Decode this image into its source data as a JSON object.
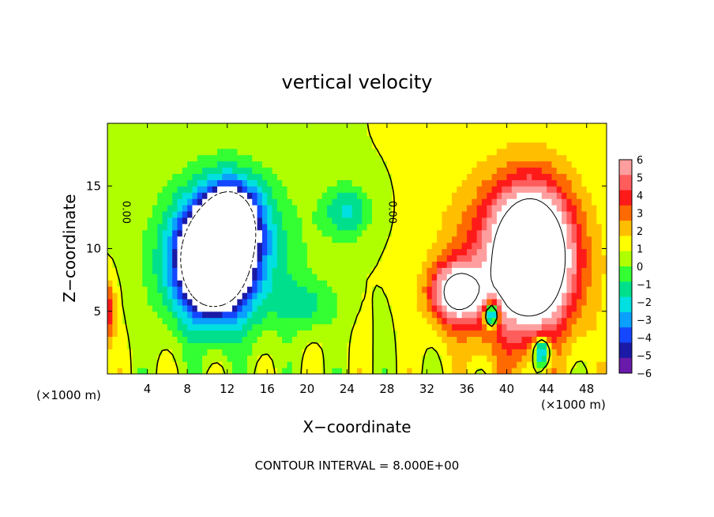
{
  "chart_data": {
    "type": "heatmap",
    "title": "vertical velocity",
    "xlabel": "X−coordinate",
    "ylabel": "Z−coordinate",
    "x_units": "(×1000 m)",
    "x_units_right": "(×1000 m)",
    "xlim": [
      0,
      50
    ],
    "ylim": [
      0,
      20
    ],
    "xticks": [
      4,
      8,
      12,
      16,
      20,
      24,
      28,
      32,
      36,
      40,
      44,
      48
    ],
    "yticks": [
      5,
      10,
      15
    ],
    "footer": "CONTOUR INTERVAL = 8.000E+00",
    "contour_labels": [
      {
        "text": "0.00",
        "x": 1.8,
        "z": 12.9
      },
      {
        "text": "0.00",
        "x": 28.5,
        "z": 12.9
      }
    ],
    "colorbar": {
      "levels": [
        6,
        5,
        4,
        3,
        2,
        1,
        0,
        -1,
        -2,
        -3,
        -4,
        -5,
        -6
      ],
      "tick_labels": [
        "6",
        "5",
        "4",
        "3",
        "2",
        "1",
        "0",
        "−1",
        "−2",
        "−3",
        "−4",
        "−5",
        "−6"
      ],
      "colors": [
        "#ff9e9e",
        "#ff5c5c",
        "#ff1a1a",
        "#ff6a00",
        "#ffbf00",
        "#ffff00",
        "#b0ff00",
        "#33ff33",
        "#00e08c",
        "#00e0e0",
        "#0aa0ff",
        "#1447ff",
        "#1a1aa6",
        "#6a1aaa"
      ]
    },
    "grid_range": {
      "x": [
        0,
        50
      ],
      "z": [
        0,
        20
      ],
      "step_x": 0.5,
      "step_z": 0.5
    },
    "features": [
      {
        "name": "downdraft-core",
        "x": 10.5,
        "z": 9.0,
        "sx": 3.6,
        "sz": 4.2,
        "amp": -12
      },
      {
        "name": "downdraft-upper",
        "x": 12.5,
        "z": 12.5,
        "sx": 2.8,
        "sz": 3.0,
        "amp": -7
      },
      {
        "name": "downdraft-halo",
        "x": 12.0,
        "z": 9.5,
        "sx": 6.5,
        "sz": 6.0,
        "amp": -4
      },
      {
        "name": "downdraft-east",
        "x": 24.0,
        "z": 13.0,
        "sx": 2.5,
        "sz": 2.2,
        "amp": -3
      },
      {
        "name": "downdraft-low",
        "x": 20.0,
        "z": 5.5,
        "sx": 3.0,
        "sz": 2.0,
        "amp": -2
      },
      {
        "name": "updraft-core",
        "x": 42.5,
        "z": 9.5,
        "sx": 3.5,
        "sz": 4.8,
        "amp": 13
      },
      {
        "name": "updraft-west",
        "x": 35.0,
        "z": 6.5,
        "sx": 2.4,
        "sz": 2.2,
        "amp": 9
      },
      {
        "name": "updraft-halo",
        "x": 41.0,
        "z": 8.5,
        "sx": 6.5,
        "sz": 7.0,
        "amp": 5
      },
      {
        "name": "updraft-left-edge",
        "x": 0.0,
        "z": 5.0,
        "sx": 0.8,
        "sz": 2.5,
        "amp": 4
      },
      {
        "name": "neg-pocket",
        "x": 38.5,
        "z": 4.8,
        "sx": 0.7,
        "sz": 1.0,
        "amp": -10
      },
      {
        "name": "neg-pocket-low",
        "x": 43.5,
        "z": 1.8,
        "sx": 0.8,
        "sz": 1.2,
        "amp": -7
      }
    ]
  }
}
